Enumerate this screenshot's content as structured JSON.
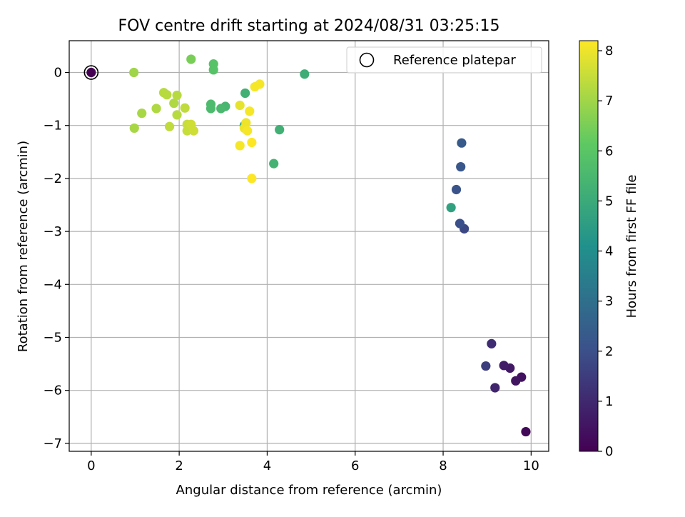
{
  "chart_data": {
    "type": "scatter",
    "title": "FOV centre drift starting at 2024/08/31 03:25:15",
    "xlabel": "Angular distance from reference (arcmin)",
    "ylabel": "Rotation from reference (arcmin)",
    "xlim": [
      -0.5,
      10.4
    ],
    "ylim": [
      -7.15,
      0.6
    ],
    "xticks": [
      0,
      2,
      4,
      6,
      8,
      10
    ],
    "yticks": [
      0,
      -1,
      -2,
      -3,
      -4,
      -5,
      -6,
      -7
    ],
    "xtick_labels": [
      "0",
      "2",
      "4",
      "6",
      "8",
      "10"
    ],
    "ytick_labels": [
      "0",
      "−1",
      "−2",
      "−3",
      "−4",
      "−5",
      "−6",
      "−7"
    ],
    "grid": true,
    "colormap": "viridis",
    "colormap_stops": [
      "#440154",
      "#3b528b",
      "#21918c",
      "#5ec962",
      "#fde725"
    ],
    "colorbar": {
      "label": "Hours from first FF file",
      "range": [
        0,
        8.2
      ],
      "ticks": [
        0,
        1,
        2,
        3,
        4,
        5,
        6,
        7,
        8
      ],
      "tick_labels": [
        "0",
        "1",
        "2",
        "3",
        "4",
        "5",
        "6",
        "7",
        "8"
      ]
    },
    "legend": {
      "position": "top-right",
      "entries": [
        "Reference platepar"
      ]
    },
    "reference_point": {
      "x": 0,
      "y": 0,
      "label": "Reference platepar"
    },
    "points": [
      {
        "x": 0.0,
        "y": 0.0,
        "c": 0.0
      },
      {
        "x": 9.88,
        "y": -6.78,
        "c": 0.2
      },
      {
        "x": 9.78,
        "y": -5.75,
        "c": 0.4
      },
      {
        "x": 9.65,
        "y": -5.82,
        "c": 0.5
      },
      {
        "x": 9.52,
        "y": -5.58,
        "c": 0.6
      },
      {
        "x": 9.38,
        "y": -5.53,
        "c": 0.7
      },
      {
        "x": 9.18,
        "y": -5.95,
        "c": 0.9
      },
      {
        "x": 9.1,
        "y": -5.12,
        "c": 1.1
      },
      {
        "x": 8.97,
        "y": -5.54,
        "c": 1.5
      },
      {
        "x": 8.48,
        "y": -2.95,
        "c": 1.8
      },
      {
        "x": 8.38,
        "y": -2.85,
        "c": 2.0
      },
      {
        "x": 8.3,
        "y": -2.21,
        "c": 2.1
      },
      {
        "x": 8.4,
        "y": -1.78,
        "c": 2.2
      },
      {
        "x": 8.42,
        "y": -1.33,
        "c": 2.3
      },
      {
        "x": 8.18,
        "y": -2.55,
        "c": 4.7
      },
      {
        "x": 4.85,
        "y": -0.03,
        "c": 5.1
      },
      {
        "x": 4.28,
        "y": -1.08,
        "c": 5.2
      },
      {
        "x": 4.15,
        "y": -1.72,
        "c": 5.3
      },
      {
        "x": 3.5,
        "y": -0.39,
        "c": 5.2
      },
      {
        "x": 3.48,
        "y": -1.0,
        "c": 5.1
      },
      {
        "x": 3.05,
        "y": -0.64,
        "c": 5.4
      },
      {
        "x": 2.95,
        "y": -0.68,
        "c": 5.5
      },
      {
        "x": 2.72,
        "y": -0.6,
        "c": 5.6
      },
      {
        "x": 2.72,
        "y": -0.68,
        "c": 5.6
      },
      {
        "x": 2.78,
        "y": 0.16,
        "c": 5.9
      },
      {
        "x": 2.78,
        "y": 0.05,
        "c": 5.9
      },
      {
        "x": 2.27,
        "y": 0.25,
        "c": 6.5
      },
      {
        "x": 0.97,
        "y": 0.0,
        "c": 7.0
      },
      {
        "x": 1.15,
        "y": -0.77,
        "c": 7.1
      },
      {
        "x": 0.98,
        "y": -1.05,
        "c": 7.1
      },
      {
        "x": 1.48,
        "y": -0.68,
        "c": 7.2
      },
      {
        "x": 1.65,
        "y": -0.38,
        "c": 7.3
      },
      {
        "x": 1.72,
        "y": -0.42,
        "c": 7.3
      },
      {
        "x": 1.88,
        "y": -0.58,
        "c": 7.2
      },
      {
        "x": 1.95,
        "y": -0.43,
        "c": 7.3
      },
      {
        "x": 1.95,
        "y": -0.8,
        "c": 7.3
      },
      {
        "x": 2.13,
        "y": -0.67,
        "c": 7.4
      },
      {
        "x": 1.78,
        "y": -1.02,
        "c": 7.4
      },
      {
        "x": 2.18,
        "y": -0.98,
        "c": 7.5
      },
      {
        "x": 2.25,
        "y": -1.02,
        "c": 7.5
      },
      {
        "x": 2.18,
        "y": -1.1,
        "c": 7.5
      },
      {
        "x": 2.27,
        "y": -0.98,
        "c": 7.6
      },
      {
        "x": 2.33,
        "y": -1.1,
        "c": 7.6
      },
      {
        "x": 3.38,
        "y": -0.62,
        "c": 7.9
      },
      {
        "x": 3.52,
        "y": -0.95,
        "c": 8.0
      },
      {
        "x": 3.48,
        "y": -1.05,
        "c": 8.0
      },
      {
        "x": 3.55,
        "y": -1.1,
        "c": 8.1
      },
      {
        "x": 3.6,
        "y": -0.73,
        "c": 8.1
      },
      {
        "x": 3.38,
        "y": -1.38,
        "c": 8.1
      },
      {
        "x": 3.65,
        "y": -1.32,
        "c": 8.2
      },
      {
        "x": 3.65,
        "y": -2.0,
        "c": 8.2
      },
      {
        "x": 3.72,
        "y": -0.27,
        "c": 8.1
      },
      {
        "x": 3.83,
        "y": -0.22,
        "c": 8.1
      }
    ]
  }
}
